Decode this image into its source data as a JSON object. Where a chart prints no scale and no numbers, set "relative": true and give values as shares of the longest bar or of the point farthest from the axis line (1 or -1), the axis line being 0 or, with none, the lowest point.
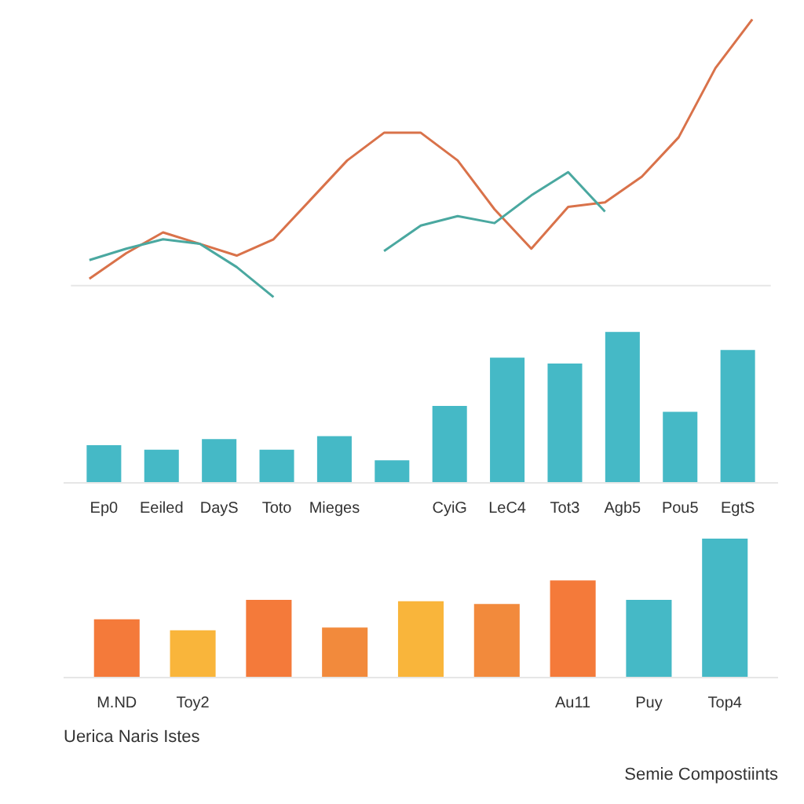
{
  "chart_data": [
    {
      "type": "line",
      "relative": true,
      "categories": [
        null,
        null,
        null,
        null,
        null,
        null,
        null,
        null,
        null,
        null,
        null,
        null,
        null,
        null,
        null,
        null,
        null,
        null,
        null
      ],
      "grid": false,
      "series": [
        {
          "color": "#d9724a",
          "values": [
            0.026,
            0.122,
            0.2,
            0.157,
            0.113,
            0.174,
            0.322,
            0.47,
            0.574,
            0.574,
            0.47,
            0.287,
            0.139,
            0.296,
            0.313,
            0.409,
            0.557,
            0.817,
            1
          ]
        },
        {
          "color": "#4aa8a0",
          "values": [
            0.096,
            0.139,
            0.174,
            0.157,
            0.07,
            -0.043,
            null,
            null,
            0.13,
            0.226,
            0.261,
            0.235,
            0.339,
            0.426,
            0.278,
            null,
            null,
            null,
            null
          ]
        }
      ]
    },
    {
      "type": "bar",
      "relative": true,
      "categories": [
        "Ep0",
        "Eeiled",
        "DayS",
        "Toto",
        "Mieges",
        null,
        "CyiG",
        "LeC4",
        "Tot3",
        "Agb5",
        "Pou5",
        "EgtS"
      ],
      "grid": false,
      "values": [
        0.25,
        0.22,
        0.29,
        0.22,
        0.31,
        0.15,
        0.51,
        0.83,
        0.79,
        1,
        0.47,
        0.88
      ],
      "color": "#45b9c6"
    },
    {
      "type": "bar",
      "relative": true,
      "categories": [
        "M.ND",
        "Toy2",
        null,
        null,
        null,
        null,
        "Au11",
        "Puy",
        "Top4"
      ],
      "grid": false,
      "values": [
        0.42,
        0.34,
        0.56,
        0.36,
        0.55,
        0.53,
        0.7,
        0.56,
        1
      ],
      "colors": [
        "#f47a3a",
        "#f9b53b",
        "#f47a3a",
        "#f28a3c",
        "#f9b53b",
        "#f28a3c",
        "#f47a3a",
        "#45b9c6",
        "#45b9c6"
      ],
      "annotations": [
        "Uerica Naris Istes",
        "Semie Compostiints"
      ]
    }
  ]
}
